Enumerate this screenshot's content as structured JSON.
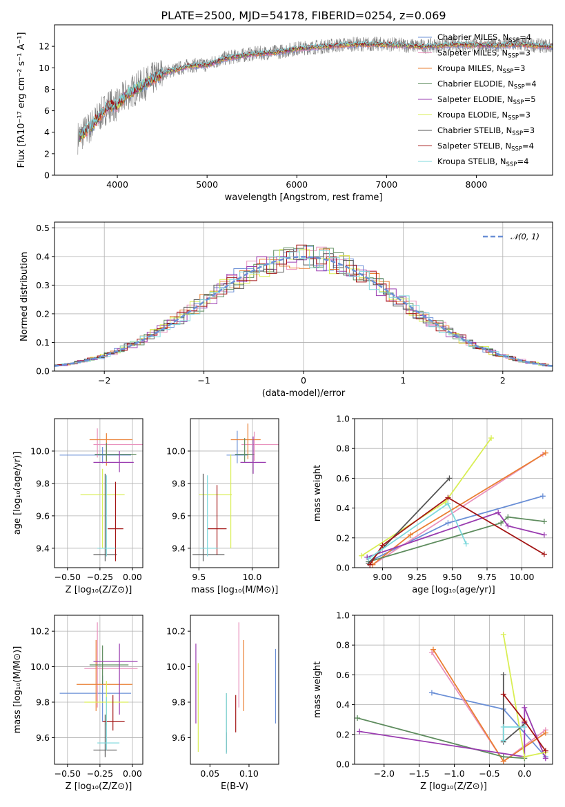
{
  "title": "PLATE=2500, MJD=54178, FIBERID=0254, z=0.069",
  "colors": [
    "#6a8fd6",
    "#e992bd",
    "#ea7f33",
    "#5e8c5e",
    "#9a3cb0",
    "#d9ee54",
    "#555555",
    "#a31515",
    "#7fd9dd"
  ],
  "chart_data": [
    {
      "id": "spectrum",
      "type": "line",
      "xlabel": "wavelength [Angstrom, rest frame]",
      "ylabel": "Flux [fλ10⁻¹⁷ erg cm⁻² s⁻¹ A⁻¹]",
      "xlim": [
        3300,
        8850
      ],
      "ylim": [
        0,
        14
      ],
      "xticks": [
        4000,
        5000,
        6000,
        7000,
        8000
      ],
      "yticks": [
        0,
        2,
        4,
        6,
        8,
        10,
        12
      ],
      "data_color": "#808080",
      "data_points": [
        [
          3560,
          3.5
        ],
        [
          3700,
          4.5
        ],
        [
          3800,
          5.5
        ],
        [
          3900,
          6.5
        ],
        [
          4000,
          6.5
        ],
        [
          4100,
          7.5
        ],
        [
          4300,
          8.5
        ],
        [
          4500,
          9.5
        ],
        [
          4800,
          10.2
        ],
        [
          5000,
          10.3
        ],
        [
          5200,
          10.9
        ],
        [
          5500,
          11.3
        ],
        [
          5800,
          11.5
        ],
        [
          6000,
          11.8
        ],
        [
          6300,
          12.0
        ],
        [
          6600,
          12.2
        ],
        [
          7000,
          12.2
        ],
        [
          7400,
          12.0
        ],
        [
          7800,
          12.2
        ],
        [
          8200,
          12.1
        ],
        [
          8500,
          12.2
        ],
        [
          8800,
          12.0
        ]
      ],
      "legend": [
        {
          "label": "Chabrier MILES, N",
          "sub": "SSP",
          "val": "=4"
        },
        {
          "label": "Salpeter MILES, N",
          "sub": "SSP",
          "val": "=3"
        },
        {
          "label": "Kroupa MILES, N",
          "sub": "SSP",
          "val": "=3"
        },
        {
          "label": "Chabrier ELODIE, N",
          "sub": "SSP",
          "val": "=4"
        },
        {
          "label": "Salpeter ELODIE, N",
          "sub": "SSP",
          "val": "=5"
        },
        {
          "label": "Kroupa ELODIE, N",
          "sub": "SSP",
          "val": "=3"
        },
        {
          "label": "Chabrier STELIB, N",
          "sub": "SSP",
          "val": "=3"
        },
        {
          "label": "Salpeter STELIB, N",
          "sub": "SSP",
          "val": "=4"
        },
        {
          "label": "Kroupa STELIB, N",
          "sub": "SSP",
          "val": "=4"
        }
      ]
    },
    {
      "id": "residuals",
      "type": "histogram",
      "xlabel": "(data-model)/error",
      "ylabel": "Normed distribution",
      "xlim": [
        -2.5,
        2.5
      ],
      "ylim": [
        0,
        0.52
      ],
      "xticks": [
        -2,
        -1,
        0,
        1,
        2
      ],
      "yticks": [
        0.0,
        0.1,
        0.2,
        0.3,
        0.4,
        0.5
      ],
      "legend_label": "𝒩(0, 1)",
      "legend_pos": "top-right",
      "grid": true
    },
    {
      "id": "age_vs_Z",
      "type": "errorbar",
      "xlabel": "Z [log₁₀(Z/Z⊙)]",
      "ylabel": "age  [log₁₀(age/yr)]",
      "xlim": [
        -0.6,
        0.08
      ],
      "ylim": [
        9.28,
        10.2
      ],
      "xticks": [
        -0.5,
        -0.25,
        0.0
      ],
      "yticks": [
        9.4,
        9.6,
        9.8,
        10.0
      ],
      "grid": true,
      "points": [
        {
          "x": -0.23,
          "y": 9.975,
          "xerr": [
            0.33,
            0.22
          ],
          "yerr": [
            0.05,
            0.05
          ]
        },
        {
          "x": -0.27,
          "y": 10.04,
          "xerr": [
            0.03,
            0.35
          ],
          "yerr": [
            0.08,
            0.1
          ]
        },
        {
          "x": -0.2,
          "y": 10.07,
          "xerr": [
            0.13,
            0.2
          ],
          "yerr": [
            0.16,
            0.04
          ]
        },
        {
          "x": -0.2,
          "y": 9.98,
          "xerr": [
            0.09,
            0.23
          ],
          "yerr": [
            0.04,
            0.07
          ]
        },
        {
          "x": -0.1,
          "y": 9.93,
          "xerr": [
            0.2,
            0.11
          ],
          "yerr": [
            0.06,
            0.07
          ]
        },
        {
          "x": -0.23,
          "y": 9.73,
          "xerr": [
            0.17,
            0.17
          ],
          "yerr": [
            0.33,
            0.16
          ]
        },
        {
          "x": -0.21,
          "y": 9.36,
          "xerr": [
            0.09,
            0.09
          ],
          "yerr": [
            0.04,
            0.5
          ]
        },
        {
          "x": -0.13,
          "y": 9.52,
          "xerr": [
            0.06,
            0.06
          ],
          "yerr": [
            0.2,
            0.29
          ]
        },
        {
          "x": -0.2,
          "y": 9.4,
          "xerr": [
            0.07,
            0.07
          ],
          "yerr": [
            0.05,
            0.45
          ]
        }
      ]
    },
    {
      "id": "age_vs_mass",
      "type": "errorbar",
      "xlabel": "mass [log₁₀(M/M⊙)]",
      "ylabel": "",
      "xlim": [
        9.42,
        10.25
      ],
      "ylim": [
        9.28,
        10.2
      ],
      "xticks": [
        9.5,
        10.0
      ],
      "yticks": [
        9.4,
        9.6,
        9.8,
        10.0
      ],
      "grid": true,
      "points": [
        {
          "x": 9.86,
          "y": 9.975,
          "xerr": [
            0.1,
            0.1
          ],
          "yerr": [
            0.05,
            0.15
          ]
        },
        {
          "x": 10.02,
          "y": 10.04,
          "xerr": [
            0.12,
            0.23
          ],
          "yerr": [
            0.1,
            0.08
          ]
        },
        {
          "x": 9.96,
          "y": 10.07,
          "xerr": [
            0.16,
            0.12
          ],
          "yerr": [
            0.12,
            0.1
          ]
        },
        {
          "x": 9.93,
          "y": 9.98,
          "xerr": [
            0.09,
            0.09
          ],
          "yerr": [
            0.05,
            0.1
          ]
        },
        {
          "x": 10.01,
          "y": 9.93,
          "xerr": [
            0.12,
            0.12
          ],
          "yerr": [
            0.07,
            0.16
          ]
        },
        {
          "x": 9.8,
          "y": 9.73,
          "xerr": [
            0.3,
            0.01
          ],
          "yerr": [
            0.33,
            0.25
          ]
        },
        {
          "x": 9.54,
          "y": 9.36,
          "xerr": [
            0.1,
            0.2
          ],
          "yerr": [
            0.04,
            0.5
          ]
        },
        {
          "x": 9.67,
          "y": 9.52,
          "xerr": [
            0.09,
            0.09
          ],
          "yerr": [
            0.16,
            0.27
          ]
        },
        {
          "x": 9.58,
          "y": 9.4,
          "xerr": [
            0.07,
            0.1
          ],
          "yerr": [
            0.05,
            0.45
          ]
        }
      ]
    },
    {
      "id": "weight_vs_age",
      "type": "line",
      "xlabel": "age  [log₁₀(age/yr)]",
      "ylabel": "mass weight",
      "xlim": [
        8.8,
        10.22
      ],
      "ylim": [
        0,
        1
      ],
      "xticks": [
        9.0,
        9.25,
        9.5,
        9.75,
        10.0
      ],
      "yticks": [
        0.0,
        0.2,
        0.4,
        0.6,
        0.8,
        1.0
      ],
      "grid": true,
      "series": [
        {
          "x": [
            8.9,
            9.47,
            10.15
          ],
          "y": [
            0.04,
            0.3,
            0.48
          ]
        },
        {
          "x": [
            8.93,
            10.15
          ],
          "y": [
            0.02,
            0.76
          ]
        },
        {
          "x": [
            8.93,
            9.2,
            10.17
          ],
          "y": [
            0.02,
            0.22,
            0.77
          ]
        },
        {
          "x": [
            8.9,
            9.85,
            9.9,
            10.16
          ],
          "y": [
            0.04,
            0.3,
            0.34,
            0.31
          ]
        },
        {
          "x": [
            8.89,
            9.83,
            9.9,
            10.16
          ],
          "y": [
            0.07,
            0.37,
            0.28,
            0.22
          ]
        },
        {
          "x": [
            8.85,
            9.45,
            9.78
          ],
          "y": [
            0.08,
            0.44,
            0.87
          ]
        },
        {
          "x": [
            8.9,
            9.48
          ],
          "y": [
            0.03,
            0.6
          ]
        },
        {
          "x": [
            8.91,
            9.0,
            9.47,
            10.16
          ],
          "y": [
            0.02,
            0.15,
            0.47,
            0.09
          ]
        },
        {
          "x": [
            8.9,
            9.47,
            9.6
          ],
          "y": [
            0.06,
            0.43,
            0.16
          ]
        }
      ]
    },
    {
      "id": "mass_vs_Z",
      "type": "errorbar",
      "xlabel": "Z [log₁₀(Z/Z⊙)]",
      "ylabel": "mass [log₁₀(M/M⊙)]",
      "xlim": [
        -0.6,
        0.08
      ],
      "ylim": [
        9.45,
        10.29
      ],
      "xticks": [
        -0.5,
        -0.25,
        0.0
      ],
      "yticks": [
        9.6,
        9.8,
        10.0,
        10.2
      ],
      "grid": true,
      "points": [
        {
          "x": -0.23,
          "y": 9.85,
          "xerr": [
            0.33,
            0.22
          ],
          "yerr": [
            0.16,
            0.1
          ]
        },
        {
          "x": -0.27,
          "y": 9.99,
          "xerr": [
            0.1,
            0.31
          ],
          "yerr": [
            0.22,
            0.26
          ]
        },
        {
          "x": -0.28,
          "y": 9.9,
          "xerr": [
            0.15,
            0.28
          ],
          "yerr": [
            0.15,
            0.25
          ]
        },
        {
          "x": -0.23,
          "y": 10.01,
          "xerr": [
            0.1,
            0.2
          ],
          "yerr": [
            0.11,
            0.11
          ]
        },
        {
          "x": -0.1,
          "y": 10.03,
          "xerr": [
            0.2,
            0.14
          ],
          "yerr": [
            0.3,
            0.1
          ]
        },
        {
          "x": -0.2,
          "y": 9.8,
          "xerr": [
            0.17,
            0.17
          ],
          "yerr": [
            0.13,
            0.12
          ]
        },
        {
          "x": -0.21,
          "y": 9.53,
          "xerr": [
            0.09,
            0.09
          ],
          "yerr": [
            0.04,
            0.2
          ]
        },
        {
          "x": -0.15,
          "y": 9.69,
          "xerr": [
            0.08,
            0.09
          ],
          "yerr": [
            0.05,
            0.15
          ]
        },
        {
          "x": -0.2,
          "y": 9.57,
          "xerr": [
            0.07,
            0.1
          ],
          "yerr": [
            0.04,
            0.26
          ]
        }
      ]
    },
    {
      "id": "mass_vs_EBV",
      "type": "errorbar",
      "xlabel": "E(B-V)",
      "ylabel": "",
      "xlim": [
        0.025,
        0.138
      ],
      "ylim": [
        9.45,
        10.29
      ],
      "xticks": [
        0.05,
        0.1
      ],
      "tick_labels": [
        "0.05",
        "0.10"
      ],
      "yticks": [
        9.6,
        9.8,
        10.0,
        10.2
      ],
      "grid": false,
      "points": [
        {
          "x": 0.134,
          "y": 9.85,
          "yerr": [
            0.17,
            0.25
          ]
        },
        {
          "x": 0.087,
          "y": 9.99,
          "yerr": [
            0.22,
            0.26
          ]
        },
        {
          "x": 0.093,
          "y": 9.9,
          "yerr": [
            0.15,
            0.25
          ]
        },
        {
          "x": 0.071,
          "y": 9.75,
          "yerr": [
            0.23,
            0.1
          ]
        },
        {
          "x": 0.032,
          "y": 9.9,
          "yerr": [
            0.22,
            0.23
          ]
        },
        {
          "x": 0.035,
          "y": 9.8,
          "yerr": [
            0.28,
            0.22
          ]
        },
        {
          "x": 0.071,
          "y": 9.53,
          "yerr": [
            0.02,
            0.1
          ]
        },
        {
          "x": 0.083,
          "y": 9.74,
          "yerr": [
            0.11,
            0.1
          ]
        },
        {
          "x": 0.071,
          "y": 9.67,
          "yerr": [
            0.16,
            0.18
          ]
        }
      ]
    },
    {
      "id": "weight_vs_Z",
      "type": "line",
      "xlabel": "Z [log₁₀(Z/Z⊙)]",
      "ylabel": "mass weight",
      "xlim": [
        -2.42,
        0.4
      ],
      "ylim": [
        0,
        1
      ],
      "xticks": [
        -2.0,
        -1.5,
        -1.0,
        -0.5,
        0.0
      ],
      "yticks": [
        0.0,
        0.2,
        0.4,
        0.6,
        0.8,
        1.0
      ],
      "grid": true,
      "series": [
        {
          "x": [
            -1.32,
            -0.3,
            0.3
          ],
          "y": [
            0.48,
            0.37,
            0.05
          ]
        },
        {
          "x": [
            -1.32,
            -0.3,
            0.3
          ],
          "y": [
            0.75,
            0.02,
            0.23
          ]
        },
        {
          "x": [
            -1.3,
            -0.3,
            0.3
          ],
          "y": [
            0.77,
            0.02,
            0.21
          ]
        },
        {
          "x": [
            -2.38,
            -0.3,
            0.0
          ],
          "y": [
            0.31,
            0.05,
            0.04
          ]
        },
        {
          "x": [
            -2.35,
            0.0,
            0.0,
            0.0,
            0.3
          ],
          "y": [
            0.22,
            0.05,
            0.28,
            0.38,
            0.04
          ]
        },
        {
          "x": [
            -0.3,
            0.0,
            0.3
          ],
          "y": [
            0.87,
            0.05,
            0.08
          ]
        },
        {
          "x": [
            -0.3,
            -0.3,
            0.0
          ],
          "y": [
            0.6,
            0.15,
            0.27
          ]
        },
        {
          "x": [
            -0.3,
            0.0,
            0.3
          ],
          "y": [
            0.47,
            0.29,
            0.09
          ]
        },
        {
          "x": [
            -0.3,
            -0.3,
            0.0
          ],
          "y": [
            0.16,
            0.25,
            0.25
          ]
        }
      ]
    }
  ]
}
